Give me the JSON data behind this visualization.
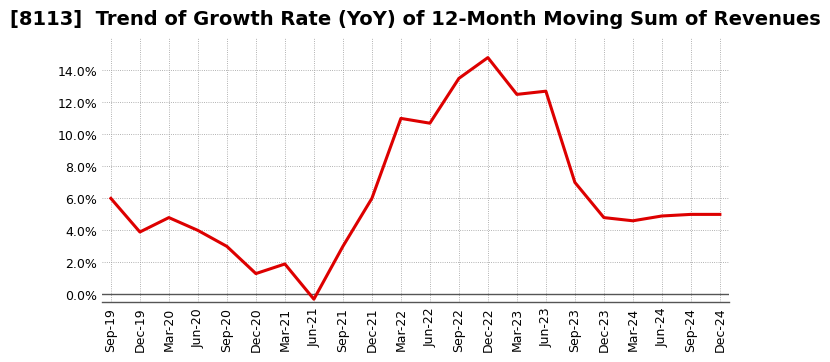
{
  "title": "[8113]  Trend of Growth Rate (YoY) of 12-Month Moving Sum of Revenues",
  "x_labels": [
    "Sep-19",
    "Dec-19",
    "Mar-20",
    "Jun-20",
    "Sep-20",
    "Dec-20",
    "Mar-21",
    "Jun-21",
    "Sep-21",
    "Dec-21",
    "Mar-22",
    "Jun-22",
    "Sep-22",
    "Dec-22",
    "Mar-23",
    "Jun-23",
    "Sep-23",
    "Dec-23",
    "Mar-24",
    "Jun-24",
    "Sep-24",
    "Dec-24"
  ],
  "y_values": [
    0.06,
    0.039,
    0.048,
    0.04,
    0.03,
    0.013,
    0.019,
    -0.003,
    0.03,
    0.06,
    0.11,
    0.107,
    0.135,
    0.148,
    0.125,
    0.127,
    0.07,
    0.048,
    0.046,
    0.049,
    0.05,
    0.05
  ],
  "line_color": "#dd0000",
  "line_width": 2.2,
  "ylim": [
    -0.005,
    0.16
  ],
  "yticks": [
    0.0,
    0.02,
    0.04,
    0.06,
    0.08,
    0.1,
    0.12,
    0.14
  ],
  "background_color": "#ffffff",
  "grid_color": "#999999",
  "title_fontsize": 14,
  "tick_fontsize": 9
}
